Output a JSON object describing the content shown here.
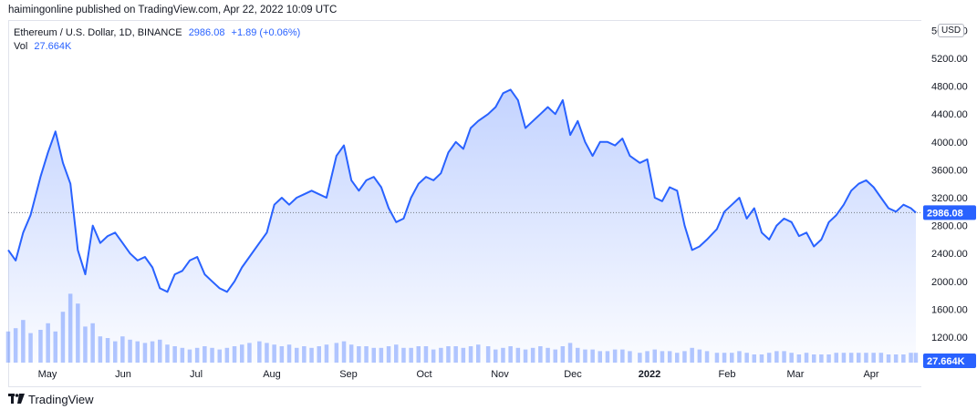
{
  "attribution": "haimingonline published on TradingView.com, Apr 22, 2022 10:09 UTC",
  "legend": {
    "symbol": "Ethereum / U.S. Dollar, 1D, BINANCE",
    "last": "2986.08",
    "change": "+1.89 (+0.06%)",
    "vol_label": "Vol",
    "vol_value": "27.664K"
  },
  "currency_button": "USD",
  "brand": "TradingView",
  "colors": {
    "line": "#2962ff",
    "fill": "#2962ff",
    "volume": "#2962ff",
    "price_label": "#2962ff"
  },
  "chart_data": {
    "type": "area",
    "price_axis_ticks": [
      "5600.00",
      "5200.00",
      "4800.00",
      "4400.00",
      "4000.00",
      "3600.00",
      "3200.00",
      "2800.00",
      "2400.00",
      "2000.00",
      "1600.00",
      "1200.00"
    ],
    "time_axis_ticks": [
      "May",
      "Jun",
      "Jul",
      "Aug",
      "Sep",
      "Oct",
      "Nov",
      "Dec",
      "2022",
      "Feb",
      "Mar",
      "Apr"
    ],
    "last_price_label": "2986.08",
    "volume_label": "27.664K",
    "ylim": [
      800,
      5700
    ],
    "x": [
      "2021-04-22",
      "2021-04-25",
      "2021-04-28",
      "2021-05-01",
      "2021-05-05",
      "2021-05-08",
      "2021-05-11",
      "2021-05-14",
      "2021-05-17",
      "2021-05-20",
      "2021-05-23",
      "2021-05-26",
      "2021-05-29",
      "2021-06-01",
      "2021-06-04",
      "2021-06-07",
      "2021-06-10",
      "2021-06-13",
      "2021-06-16",
      "2021-06-19",
      "2021-06-22",
      "2021-06-25",
      "2021-06-28",
      "2021-07-01",
      "2021-07-04",
      "2021-07-07",
      "2021-07-10",
      "2021-07-13",
      "2021-07-16",
      "2021-07-19",
      "2021-07-22",
      "2021-07-25",
      "2021-07-28",
      "2021-08-01",
      "2021-08-04",
      "2021-08-07",
      "2021-08-10",
      "2021-08-13",
      "2021-08-16",
      "2021-08-19",
      "2021-08-22",
      "2021-08-25",
      "2021-08-28",
      "2021-09-01",
      "2021-09-04",
      "2021-09-07",
      "2021-09-10",
      "2021-09-13",
      "2021-09-16",
      "2021-09-19",
      "2021-09-22",
      "2021-09-25",
      "2021-09-28",
      "2021-10-01",
      "2021-10-04",
      "2021-10-07",
      "2021-10-10",
      "2021-10-13",
      "2021-10-16",
      "2021-10-19",
      "2021-10-22",
      "2021-10-25",
      "2021-10-28",
      "2021-11-01",
      "2021-11-04",
      "2021-11-07",
      "2021-11-10",
      "2021-11-13",
      "2021-11-16",
      "2021-11-19",
      "2021-11-22",
      "2021-11-25",
      "2021-11-28",
      "2021-12-01",
      "2021-12-04",
      "2021-12-07",
      "2021-12-10",
      "2021-12-13",
      "2021-12-16",
      "2021-12-19",
      "2021-12-22",
      "2021-12-25",
      "2021-12-28",
      "2022-01-01",
      "2022-01-04",
      "2022-01-07",
      "2022-01-10",
      "2022-01-13",
      "2022-01-16",
      "2022-01-19",
      "2022-01-22",
      "2022-01-25",
      "2022-01-28",
      "2022-02-01",
      "2022-02-04",
      "2022-02-07",
      "2022-02-10",
      "2022-02-13",
      "2022-02-16",
      "2022-02-19",
      "2022-02-22",
      "2022-02-25",
      "2022-02-28",
      "2022-03-03",
      "2022-03-06",
      "2022-03-09",
      "2022-03-12",
      "2022-03-15",
      "2022-03-18",
      "2022-03-21",
      "2022-03-24",
      "2022-03-27",
      "2022-03-30",
      "2022-04-02",
      "2022-04-05",
      "2022-04-08",
      "2022-04-11",
      "2022-04-14",
      "2022-04-17",
      "2022-04-20",
      "2022-04-22"
    ],
    "series": [
      {
        "values": [
          2450,
          2300,
          2700,
          2950,
          3500,
          3850,
          4150,
          3700,
          3400,
          2450,
          2100,
          2800,
          2550,
          2650,
          2700,
          2550,
          2400,
          2300,
          2350,
          2200,
          1900,
          1850,
          2100,
          2150,
          2300,
          2350,
          2100,
          2000,
          1900,
          1850,
          2000,
          2200,
          2350,
          2550,
          2700,
          3100,
          3200,
          3100,
          3200,
          3250,
          3300,
          3250,
          3200,
          3800,
          3950,
          3450,
          3300,
          3450,
          3500,
          3350,
          3050,
          2850,
          2900,
          3200,
          3400,
          3500,
          3450,
          3550,
          3850,
          4000,
          3900,
          4200,
          4300,
          4400,
          4500,
          4700,
          4750,
          4600,
          4200,
          4300,
          4400,
          4500,
          4400,
          4600,
          4100,
          4300,
          4000,
          3800,
          4000,
          4000,
          3950,
          4050,
          3800,
          3700,
          3750,
          3200,
          3150,
          3350,
          3300,
          2800,
          2450,
          2500,
          2600,
          2750,
          3000,
          3100,
          3200,
          2900,
          3050,
          2700,
          2600,
          2800,
          2900,
          2850,
          2650,
          2700,
          2500,
          2600,
          2850,
          2950,
          3100,
          3300,
          3400,
          3450,
          3350,
          3200,
          3050,
          3000,
          3100,
          3050,
          2986.08
        ]
      }
    ],
    "volume": [
      1.9,
      2.1,
      2.6,
      1.8,
      2.0,
      2.4,
      1.9,
      3.1,
      4.2,
      3.6,
      2.2,
      2.4,
      1.6,
      1.5,
      1.3,
      1.6,
      1.4,
      1.3,
      1.2,
      1.3,
      1.4,
      1.1,
      1.0,
      0.9,
      0.8,
      0.9,
      1.0,
      0.9,
      0.8,
      0.9,
      1.0,
      1.1,
      1.2,
      1.3,
      1.2,
      1.1,
      1.0,
      1.1,
      0.9,
      1.0,
      0.9,
      1.0,
      1.1,
      1.2,
      1.3,
      1.1,
      1.0,
      1.0,
      0.9,
      0.9,
      1.0,
      1.1,
      0.9,
      0.9,
      1.0,
      1.0,
      0.8,
      0.9,
      1.0,
      1.0,
      0.9,
      1.0,
      1.1,
      1.0,
      0.8,
      0.9,
      1.0,
      0.9,
      0.8,
      0.9,
      1.0,
      0.9,
      0.8,
      1.0,
      1.2,
      0.9,
      0.8,
      0.8,
      0.7,
      0.7,
      0.8,
      0.8,
      0.7,
      0.6,
      0.7,
      0.8,
      0.7,
      0.7,
      0.6,
      0.7,
      0.9,
      0.8,
      0.7,
      0.6,
      0.6,
      0.6,
      0.7,
      0.6,
      0.5,
      0.5,
      0.6,
      0.7,
      0.7,
      0.6,
      0.5,
      0.6,
      0.5,
      0.5,
      0.5,
      0.6,
      0.6,
      0.6,
      0.6,
      0.6,
      0.6,
      0.6,
      0.5,
      0.5,
      0.5,
      0.6,
      0.6
    ]
  }
}
